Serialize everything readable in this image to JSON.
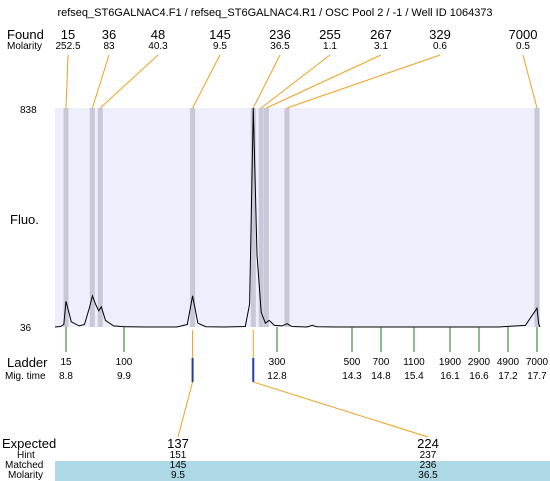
{
  "title": "refseq_ST6GALNAC4.F1 / refseq_ST6GALNAC4.R1 / OSC Pool 2 / -1 / Well ID 1064373",
  "labels": {
    "found": "Found",
    "molarity": "Molarity",
    "fluo": "Fluo.",
    "ladder": "Ladder",
    "mig_time": "Mig. time",
    "expected": "Expected",
    "hint": "Hint",
    "matched": "Matched",
    "molarity_bottom": "Molarity"
  },
  "colors": {
    "plot_bg": "#eeeefc",
    "marker_band": "#c8c8d8",
    "callout_line": "#f0a020",
    "ladder_tick": "#1a7a1a",
    "expected_tick": "#2040a0",
    "highlight_band": "#add8e6"
  },
  "chart_data": {
    "type": "line",
    "y_axis": {
      "max_label": "838",
      "min_label": "36",
      "ylim": [
        36,
        838
      ]
    },
    "found_peaks": [
      {
        "size": "15",
        "molarity": "252.5",
        "mig_time": 8.8
      },
      {
        "size": "36",
        "molarity": "83",
        "mig_time": 9.3
      },
      {
        "size": "48",
        "molarity": "40.3",
        "mig_time": 9.45
      },
      {
        "size": "145",
        "molarity": "9.5",
        "mig_time": 11.2
      },
      {
        "size": "236",
        "molarity": "36.5",
        "mig_time": 12.35
      },
      {
        "size": "255",
        "molarity": "1.1",
        "mig_time": 12.5
      },
      {
        "size": "267",
        "molarity": "3.1",
        "mig_time": 12.6
      },
      {
        "size": "329",
        "molarity": "0.6",
        "mig_time": 13.0
      },
      {
        "size": "7000",
        "molarity": "0.5",
        "mig_time": 17.7
      }
    ],
    "ladder": [
      {
        "size": "15",
        "mig_time": "8.8"
      },
      {
        "size": "100",
        "mig_time": "9.9"
      },
      {
        "size": "300",
        "mig_time": "12.8"
      },
      {
        "size": "500",
        "mig_time": "14.3"
      },
      {
        "size": "700",
        "mig_time": "14.8"
      },
      {
        "size": "1100",
        "mig_time": "15.4"
      },
      {
        "size": "1900",
        "mig_time": "16.1"
      },
      {
        "size": "2900",
        "mig_time": "16.6"
      },
      {
        "size": "4900",
        "mig_time": "17.2"
      },
      {
        "size": "7000",
        "mig_time": "17.7"
      }
    ],
    "expected": [
      {
        "expected": "137",
        "hint": "151",
        "matched": "145",
        "molarity": "9.5"
      },
      {
        "expected": "224",
        "hint": "237",
        "matched": "236",
        "molarity": "36.5"
      }
    ],
    "trace": [
      [
        8.55,
        38
      ],
      [
        8.7,
        45
      ],
      [
        8.8,
        130
      ],
      [
        8.9,
        55
      ],
      [
        9.05,
        40
      ],
      [
        9.15,
        45
      ],
      [
        9.25,
        110
      ],
      [
        9.3,
        150
      ],
      [
        9.36,
        120
      ],
      [
        9.42,
        95
      ],
      [
        9.47,
        110
      ],
      [
        9.55,
        60
      ],
      [
        9.7,
        40
      ],
      [
        9.9,
        37
      ],
      [
        10.3,
        36
      ],
      [
        10.9,
        36
      ],
      [
        11.1,
        45
      ],
      [
        11.2,
        150
      ],
      [
        11.3,
        50
      ],
      [
        11.45,
        37
      ],
      [
        11.8,
        36
      ],
      [
        12.2,
        38
      ],
      [
        12.28,
        120
      ],
      [
        12.35,
        838
      ],
      [
        12.42,
        300
      ],
      [
        12.5,
        90
      ],
      [
        12.58,
        50
      ],
      [
        12.65,
        60
      ],
      [
        12.75,
        42
      ],
      [
        12.9,
        40
      ],
      [
        13.0,
        48
      ],
      [
        13.1,
        38
      ],
      [
        13.4,
        36
      ],
      [
        13.5,
        42
      ],
      [
        13.6,
        37
      ],
      [
        14.0,
        36
      ],
      [
        15.0,
        36
      ],
      [
        16.0,
        36
      ],
      [
        17.0,
        36
      ],
      [
        17.5,
        42
      ],
      [
        17.7,
        105
      ],
      [
        17.85,
        45
      ],
      [
        17.95,
        36
      ]
    ]
  }
}
